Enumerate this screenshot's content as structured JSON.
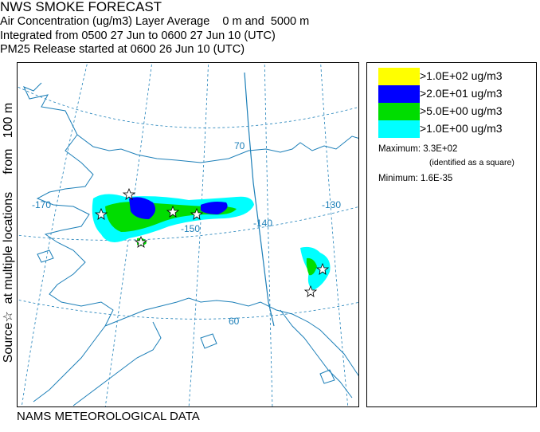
{
  "title": {
    "line1": "NWS SMOKE FORECAST",
    "line2": "Air Concentration (ug/m3) Layer Average    0 m and  5000 m",
    "line3": "Integrated from 0500 27 Jun to 0600 27 Jun 10 (UTC)",
    "line4": "PM25 Release started at 0600 26 Jun 10 (UTC)"
  },
  "side_label": "Source☆  at multiple locations     from   100 m",
  "footer": "NAMS METEOROLOGICAL DATA",
  "map": {
    "graticule_labels": {
      "lat70": "70",
      "lat60": "60",
      "lon170": "-170",
      "lon150": "-150",
      "lon140": "-140",
      "lon130": "-130"
    }
  },
  "legend": {
    "entries": [
      {
        "label": ">1.0E+02 ug/m3",
        "color": "#ffff00"
      },
      {
        "label": ">2.0E+01 ug/m3",
        "color": "#0000ff"
      },
      {
        "label": ">5.0E+00 ug/m3",
        "color": "#00dd00"
      },
      {
        "label": ">1.0E+00 ug/m3",
        "color": "#00ffff"
      }
    ],
    "maximum_label": "Maximum: 3.3E+02",
    "maximum_note": "(identified as a square)",
    "minimum_label": "Minimum: 1.6E-35"
  },
  "colors": {
    "coast": "#1c7fb8",
    "graticule": "#1c7fb8",
    "border": "#1c7fb8"
  }
}
